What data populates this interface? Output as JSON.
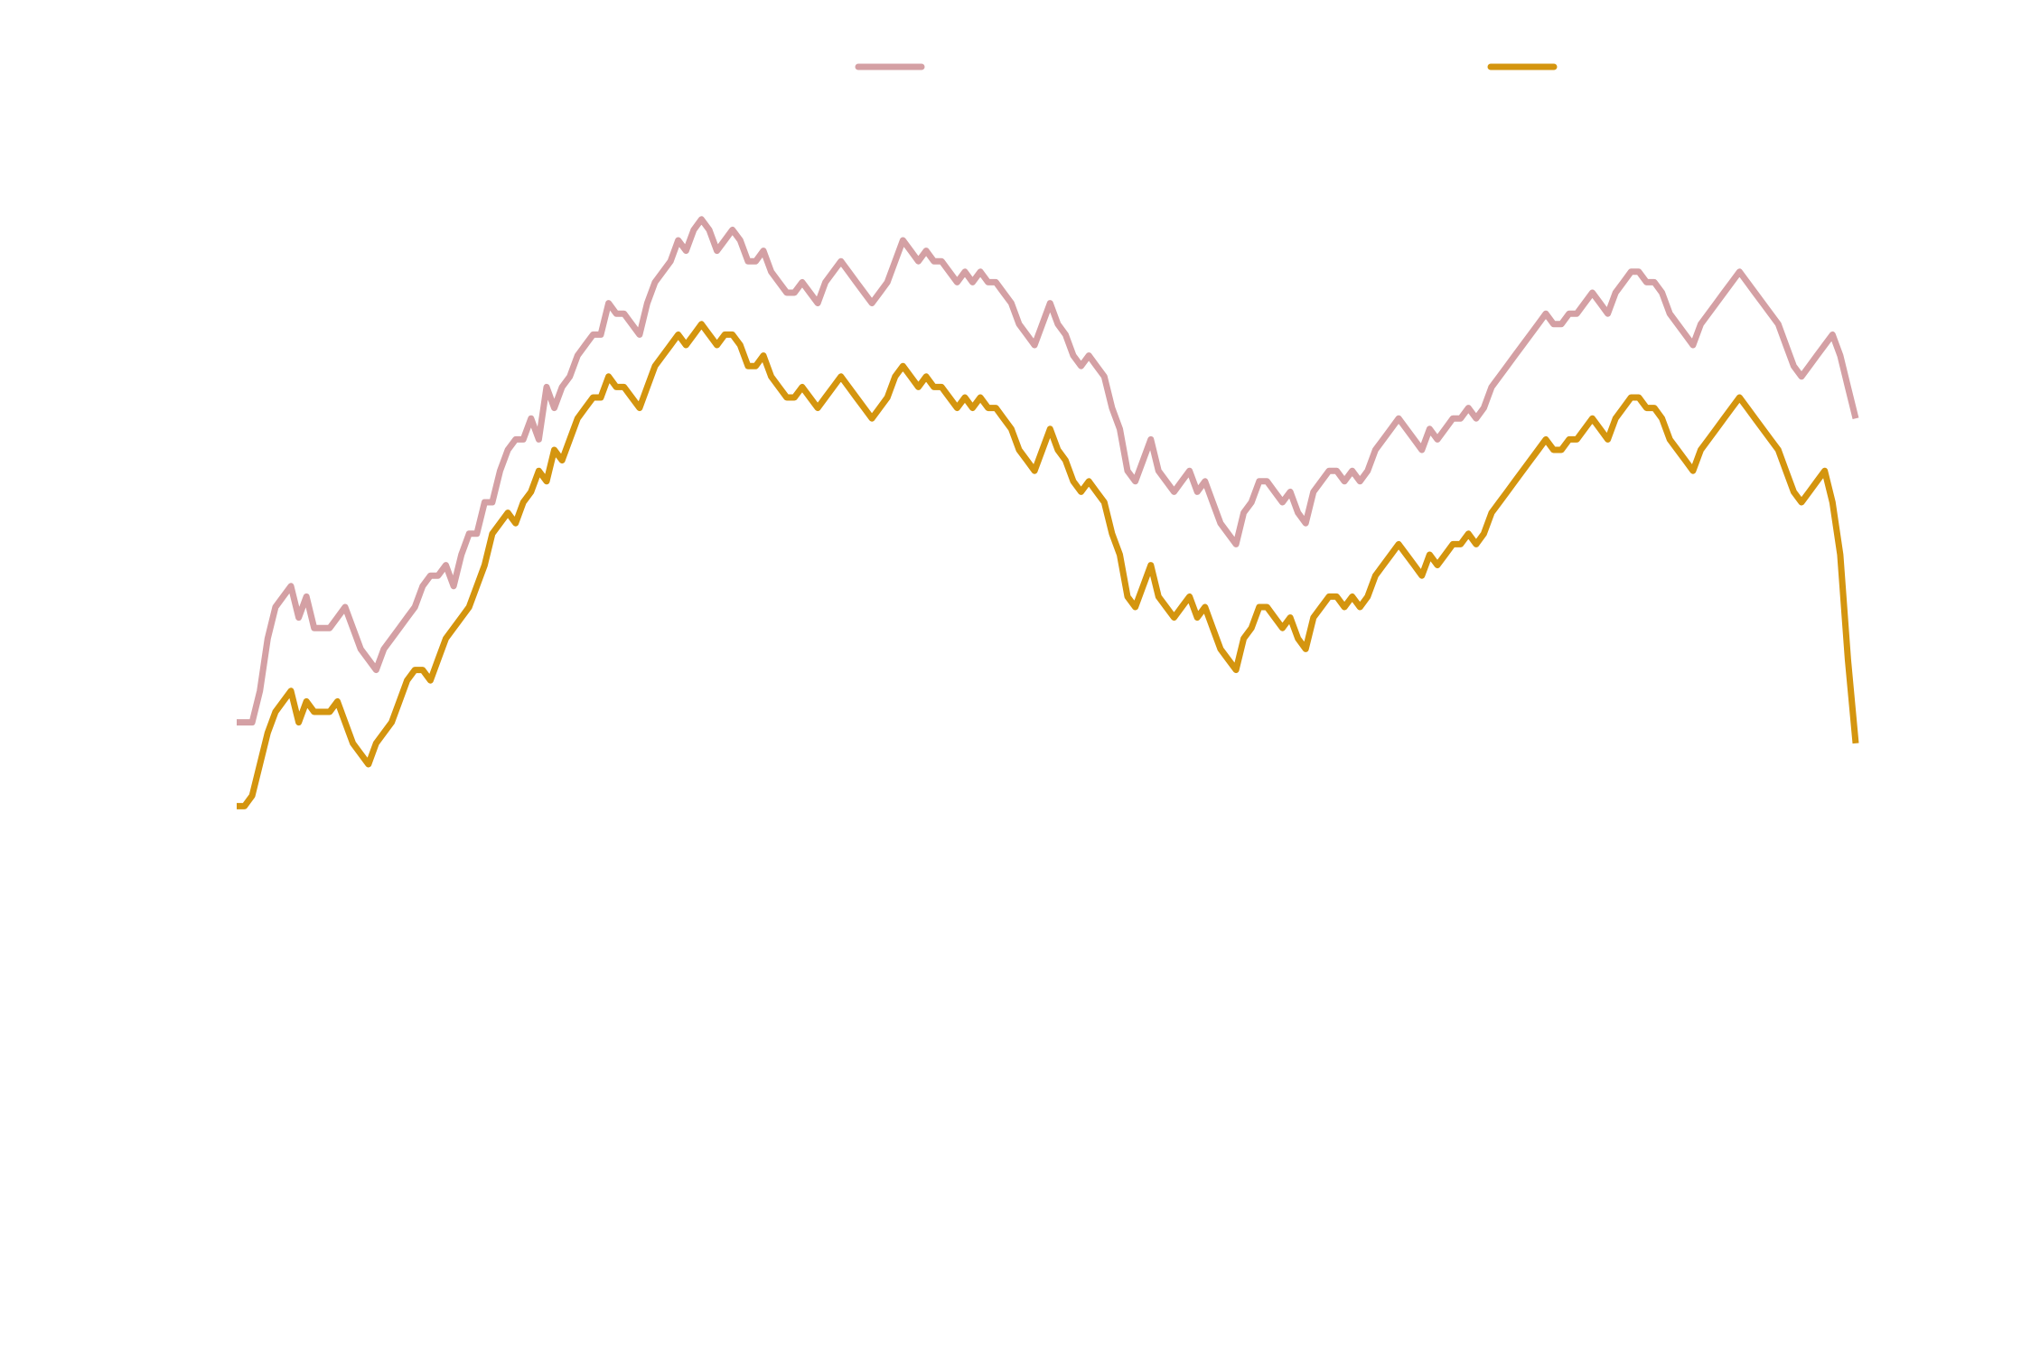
{
  "chart_data": {
    "type": "line",
    "title": "",
    "xlabel": "",
    "ylabel": "",
    "xlim": [
      0,
      240
    ],
    "ylim": [
      0,
      100
    ],
    "grid": false,
    "legend_position": "top",
    "series": [
      {
        "color": "#d4a0a4",
        "values": [
          44,
          44,
          44,
          47,
          52,
          55,
          56,
          57,
          54,
          56,
          53,
          53,
          53,
          54,
          55,
          53,
          51,
          50,
          49,
          51,
          52,
          53,
          54,
          55,
          57,
          58,
          58,
          59,
          57,
          60,
          62,
          62,
          65,
          65,
          68,
          70,
          71,
          71,
          73,
          71,
          76,
          74,
          76,
          77,
          79,
          80,
          81,
          81,
          84,
          83,
          83,
          82,
          81,
          84,
          86,
          87,
          88,
          90,
          89,
          91,
          92,
          91,
          89,
          90,
          91,
          90,
          88,
          88,
          89,
          87,
          86,
          85,
          85,
          86,
          85,
          84,
          86,
          87,
          88,
          87,
          86,
          85,
          84,
          85,
          86,
          88,
          90,
          89,
          88,
          89,
          88,
          88,
          87,
          86,
          87,
          86,
          87,
          86,
          86,
          85,
          84,
          82,
          81,
          80,
          82,
          84,
          82,
          81,
          79,
          78,
          79,
          78,
          77,
          74,
          72,
          68,
          67,
          69,
          71,
          68,
          67,
          66,
          67,
          68,
          66,
          67,
          65,
          63,
          62,
          61,
          64,
          65,
          67,
          67,
          66,
          65,
          66,
          64,
          63,
          66,
          67,
          68,
          68,
          67,
          68,
          67,
          68,
          70,
          71,
          72,
          73,
          72,
          71,
          70,
          72,
          71,
          72,
          73,
          73,
          74,
          73,
          74,
          76,
          77,
          78,
          79,
          80,
          81,
          82,
          83,
          82,
          82,
          83,
          83,
          84,
          85,
          84,
          83,
          85,
          86,
          87,
          87,
          86,
          86,
          85,
          83,
          82,
          81,
          80,
          82,
          83,
          84,
          85,
          86,
          87,
          86,
          85,
          84,
          83,
          82,
          80,
          78,
          77,
          78,
          79,
          80,
          81,
          79,
          76,
          73
        ]
      },
      {
        "color": "#d4950f",
        "values": [
          36,
          36,
          37,
          40,
          43,
          45,
          46,
          47,
          44,
          46,
          45,
          45,
          45,
          46,
          44,
          42,
          41,
          40,
          42,
          43,
          44,
          46,
          48,
          49,
          49,
          48,
          50,
          52,
          53,
          54,
          55,
          57,
          59,
          62,
          63,
          64,
          63,
          65,
          66,
          68,
          67,
          70,
          69,
          71,
          73,
          74,
          75,
          75,
          77,
          76,
          76,
          75,
          74,
          76,
          78,
          79,
          80,
          81,
          80,
          81,
          82,
          81,
          80,
          81,
          81,
          80,
          78,
          78,
          79,
          77,
          76,
          75,
          75,
          76,
          75,
          74,
          75,
          76,
          77,
          76,
          75,
          74,
          73,
          74,
          75,
          77,
          78,
          77,
          76,
          77,
          76,
          76,
          75,
          74,
          75,
          74,
          75,
          74,
          74,
          73,
          72,
          70,
          69,
          68,
          70,
          72,
          70,
          69,
          67,
          66,
          67,
          66,
          65,
          62,
          60,
          56,
          55,
          57,
          59,
          56,
          55,
          54,
          55,
          56,
          54,
          55,
          53,
          51,
          50,
          49,
          52,
          53,
          55,
          55,
          54,
          53,
          54,
          52,
          51,
          54,
          55,
          56,
          56,
          55,
          56,
          55,
          56,
          58,
          59,
          60,
          61,
          60,
          59,
          58,
          60,
          59,
          60,
          61,
          61,
          62,
          61,
          62,
          64,
          65,
          66,
          67,
          68,
          69,
          70,
          71,
          70,
          70,
          71,
          71,
          72,
          73,
          72,
          71,
          73,
          74,
          75,
          75,
          74,
          74,
          73,
          71,
          70,
          69,
          68,
          70,
          71,
          72,
          73,
          74,
          75,
          74,
          73,
          72,
          71,
          70,
          68,
          66,
          65,
          66,
          67,
          68,
          65,
          60,
          50,
          42
        ]
      }
    ]
  }
}
